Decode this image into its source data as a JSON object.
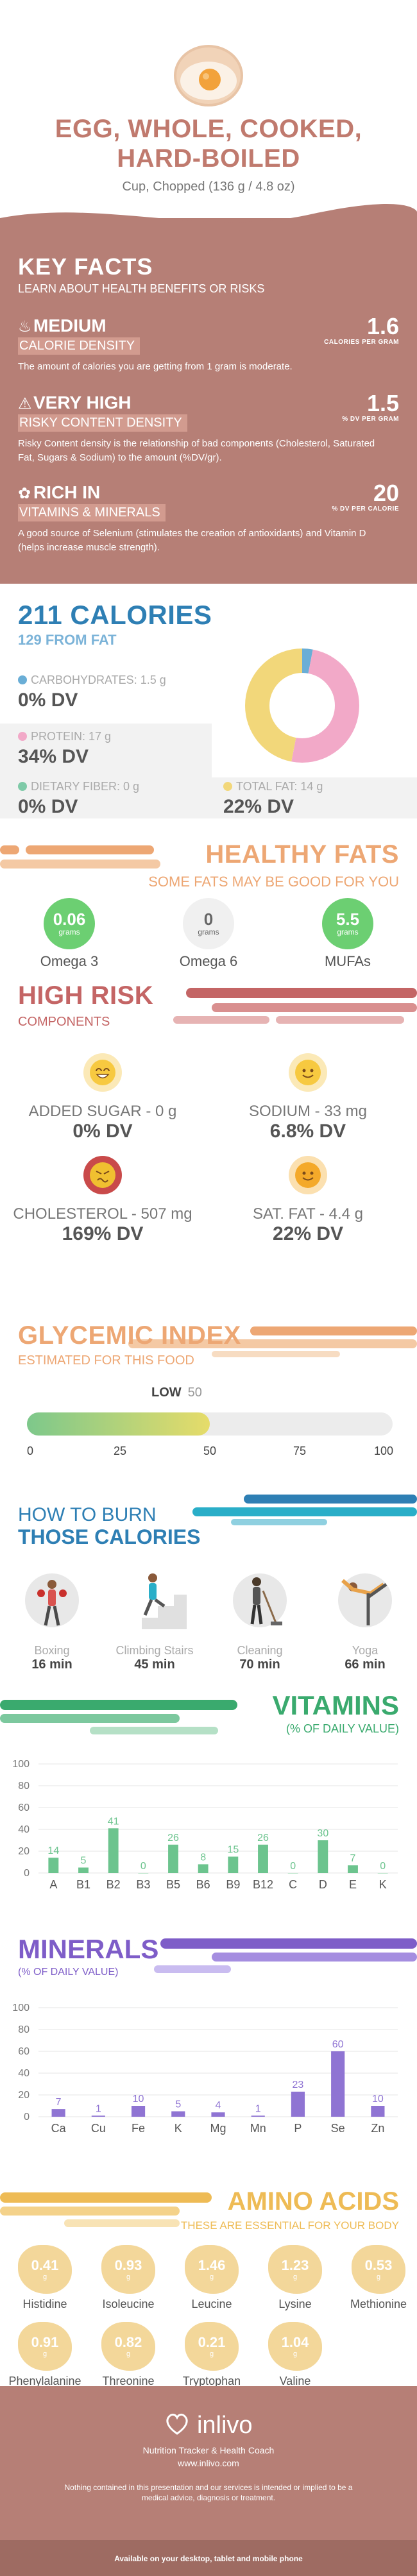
{
  "header": {
    "title_line1": "EGG, WHOLE, COOKED,",
    "title_line2": "HARD-BOILED",
    "serving": "Cup, Chopped (136 g / 4.8 oz)"
  },
  "key_facts": {
    "title": "KEY FACTS",
    "subtitle": "LEARN ABOUT HEALTH BENEFITS OR RISKS",
    "facts": [
      {
        "icon": "flame-icon",
        "level": "MEDIUM",
        "label": "CALORIE DENSITY",
        "value": "1.6",
        "unit": "CALORIES PER GRAM",
        "description": "The amount of calories you are getting from 1 gram is moderate."
      },
      {
        "icon": "warning-icon",
        "level": "VERY HIGH",
        "label": "RISKY CONTENT DENSITY",
        "value": "1.5",
        "unit": "% DV PER GRAM",
        "description": "Risky Content density is the relationship of bad components (Cholesterol, Saturated Fat, Sugars & Sodium) to the amount (%DV/gr)."
      },
      {
        "icon": "leaf-icon",
        "level": "RICH IN",
        "label": "VITAMINS & MINERALS",
        "value": "20",
        "unit": "% DV PER CALORIE",
        "description": "A good source of Selenium (stimulates the creation of antioxidants) and Vitamin D (helps increase muscle strength)."
      }
    ]
  },
  "calories": {
    "title": "211 CALORIES",
    "subtitle": "129 FROM FAT",
    "macros": [
      {
        "label": "CARBOHYDRATES: 1.5 g",
        "dv": "0% DV",
        "color": "#6aaed6"
      },
      {
        "label": "PROTEIN: 17 g",
        "dv": "34% DV",
        "color": "#f2a9c8"
      },
      {
        "label": "DIETARY FIBER: 0 g",
        "dv": "0% DV",
        "color": "#7fcaa8"
      },
      {
        "label": "TOTAL FAT: 14 g",
        "dv": "22% DV",
        "color": "#f2d77a"
      }
    ]
  },
  "chart_data": [
    {
      "type": "pie",
      "categories": [
        "Carbohydrates",
        "Protein",
        "Total Fat"
      ],
      "values": [
        3,
        50,
        47
      ],
      "colors": [
        "#6aaed6",
        "#f2a9c8",
        "#f2d77a"
      ]
    },
    {
      "type": "bar",
      "title": "VITAMINS",
      "subtitle": "(% OF DAILY VALUE)",
      "categories": [
        "A",
        "B1",
        "B2",
        "B3",
        "B5",
        "B6",
        "B9",
        "B12",
        "C",
        "D",
        "E",
        "K"
      ],
      "values": [
        14,
        5,
        41,
        0,
        26,
        8,
        15,
        26,
        0,
        30,
        7,
        0
      ],
      "ylim": [
        0,
        100
      ],
      "yticks": [
        0,
        20,
        40,
        60,
        80,
        100
      ],
      "color": "#6cc48e"
    },
    {
      "type": "bar",
      "title": "MINERALS",
      "subtitle": "(% OF DAILY VALUE)",
      "categories": [
        "Ca",
        "Cu",
        "Fe",
        "K",
        "Mg",
        "Mn",
        "P",
        "Se",
        "Zn"
      ],
      "values": [
        7,
        1,
        10,
        5,
        4,
        1,
        23,
        60,
        10
      ],
      "ylim": [
        0,
        100
      ],
      "yticks": [
        0,
        20,
        40,
        60,
        80,
        100
      ],
      "color": "#8f74d3"
    }
  ],
  "healthy_fats": {
    "title": "HEALTHY FATS",
    "subtitle": "SOME FATS MAY BE GOOD FOR YOU",
    "items": [
      {
        "name": "Omega 3",
        "value": "0.06",
        "unit": "grams",
        "color": "#6ccf72"
      },
      {
        "name": "Omega 6",
        "value": "0",
        "unit": "grams",
        "color": "#f0f0f0"
      },
      {
        "name": "MUFAs",
        "value": "5.5",
        "unit": "grams",
        "color": "#6ccf72"
      }
    ]
  },
  "high_risk": {
    "title": "HIGH RISK",
    "subtitle": "COMPONENTS",
    "items": [
      {
        "label": "ADDED SUGAR - 0 g",
        "dv": "0% DV",
        "face": "happy-face-icon"
      },
      {
        "label": "SODIUM - 33 mg",
        "dv": "6.8% DV",
        "face": "smile-face-icon"
      },
      {
        "label": "CHOLESTEROL - 507 mg",
        "dv": "169% DV",
        "face": "sick-face-icon"
      },
      {
        "label": "SAT. FAT - 4.4 g",
        "dv": "22% DV",
        "face": "smile-face-icon"
      }
    ]
  },
  "glycemic": {
    "title": "GLYCEMIC INDEX",
    "subtitle": "ESTIMATED FOR THIS FOOD",
    "level": "LOW",
    "value": "50",
    "fill_fraction": 0.5,
    "ticks": [
      "0",
      "25",
      "50",
      "75",
      "100"
    ]
  },
  "burn": {
    "title1": "HOW TO BURN",
    "title2": "THOSE CALORIES",
    "activities": [
      {
        "name": "Boxing",
        "time": "16 min",
        "icon": "boxing-icon"
      },
      {
        "name": "Climbing Stairs",
        "time": "45 min",
        "icon": "stairs-icon"
      },
      {
        "name": "Cleaning",
        "time": "70 min",
        "icon": "cleaning-icon"
      },
      {
        "name": "Yoga",
        "time": "66 min",
        "icon": "yoga-icon"
      }
    ]
  },
  "amino_acids": {
    "title": "AMINO ACIDS",
    "subtitle": "THESE ARE ESSENTIAL FOR YOUR BODY",
    "items": [
      {
        "name": "Histidine",
        "value": "0.41",
        "unit": "g"
      },
      {
        "name": "Isoleucine",
        "value": "0.93",
        "unit": "g"
      },
      {
        "name": "Leucine",
        "value": "1.46",
        "unit": "g"
      },
      {
        "name": "Lysine",
        "value": "1.23",
        "unit": "g"
      },
      {
        "name": "Methionine",
        "value": "0.53",
        "unit": "g"
      },
      {
        "name": "Phenylalanine",
        "value": "0.91",
        "unit": "g"
      },
      {
        "name": "Threonine",
        "value": "0.82",
        "unit": "g"
      },
      {
        "name": "Tryptophan",
        "value": "0.21",
        "unit": "g"
      },
      {
        "name": "Valine",
        "value": "1.04",
        "unit": "g"
      }
    ]
  },
  "footer": {
    "brand": "inlivo",
    "tagline": "Nutrition Tracker & Health Coach",
    "url": "www.inlivo.com",
    "disclaimer": "Nothing contained in this presentation and our services is intended or implied to be a medical advice, diagnosis or treatment.",
    "available": "Available on your desktop, tablet and mobile phone"
  }
}
